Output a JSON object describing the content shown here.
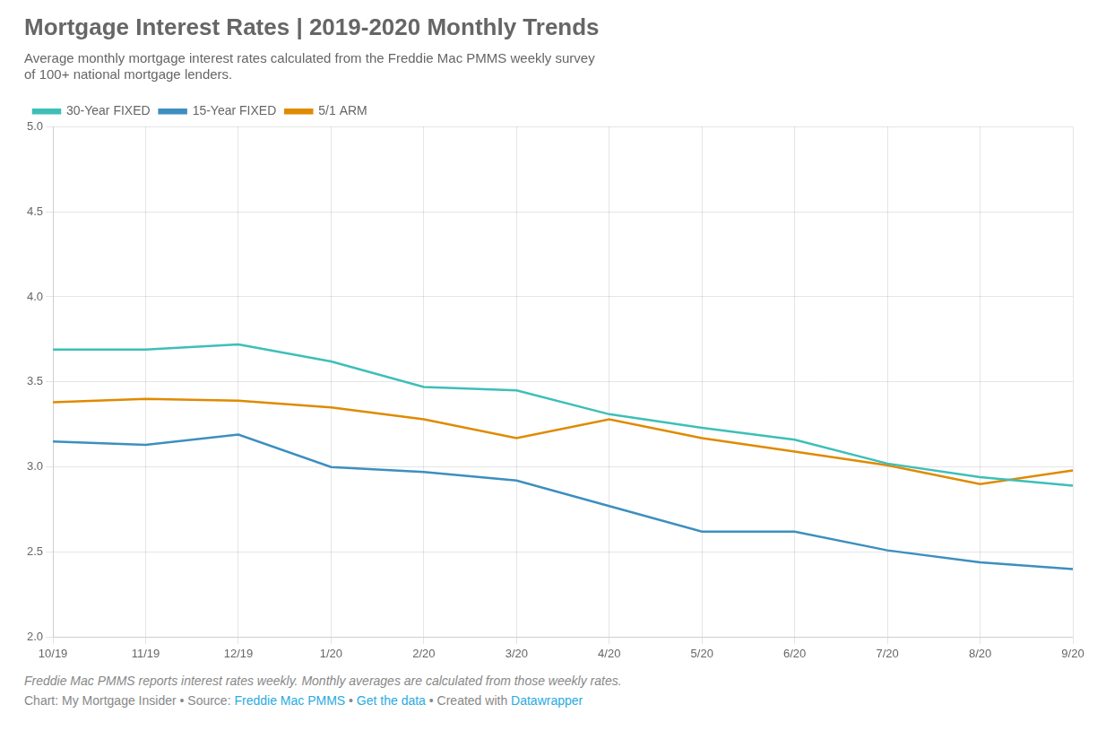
{
  "chart_data": {
    "type": "line",
    "title": "Mortgage Interest Rates | 2019-2020 Monthly Trends",
    "subtitle": [
      "Average monthly mortgage interest rates calculated from the Freddie Mac PMMS weekly survey",
      "of 100+ national mortgage lenders."
    ],
    "categories": [
      "10/19",
      "11/19",
      "12/19",
      "1/20",
      "2/20",
      "3/20",
      "4/20",
      "5/20",
      "6/20",
      "7/20",
      "8/20",
      "9/20"
    ],
    "series": [
      {
        "name": "30-Year FIXED",
        "color": "#3dbfb8",
        "values": [
          3.69,
          3.69,
          3.72,
          3.62,
          3.47,
          3.45,
          3.31,
          3.23,
          3.16,
          3.02,
          2.94,
          2.89
        ]
      },
      {
        "name": "15-Year FIXED",
        "color": "#3d8fbf",
        "values": [
          3.15,
          3.13,
          3.19,
          3.0,
          2.97,
          2.92,
          2.77,
          2.62,
          2.62,
          2.51,
          2.44,
          2.4
        ]
      },
      {
        "name": "5/1 ARM",
        "color": "#e08a00",
        "values": [
          3.38,
          3.4,
          3.39,
          3.35,
          3.28,
          3.17,
          3.28,
          3.17,
          3.09,
          3.01,
          2.9,
          2.98
        ]
      }
    ],
    "ylim": [
      2,
      5
    ],
    "yticks": [
      {
        "value": 2,
        "label": "2.0"
      },
      2.5,
      {
        "value": 3,
        "label": "3.0"
      },
      3.5,
      {
        "value": 4,
        "label": "4.0"
      },
      4.5,
      {
        "value": 5,
        "label": "5.0"
      }
    ],
    "grid": true,
    "legend": "top",
    "footnote": {
      "text": "Freddie Mac PMMS reports interest rates weekly. Monthly averages are calculated from those weekly rates.",
      "color": "#888888"
    },
    "source": [
      {
        "text": "Chart: My Mortgage Insider • Source: ",
        "color": "#888888"
      },
      {
        "text": "Freddie Mac PMMS",
        "color": "#29abe2"
      },
      {
        "text": " • ",
        "color": "#888888"
      },
      {
        "text": "Get the data",
        "color": "#29abe2"
      },
      {
        "text": " • Created with ",
        "color": "#888888"
      },
      {
        "text": "Datawrapper",
        "color": "#29abe2"
      }
    ]
  }
}
